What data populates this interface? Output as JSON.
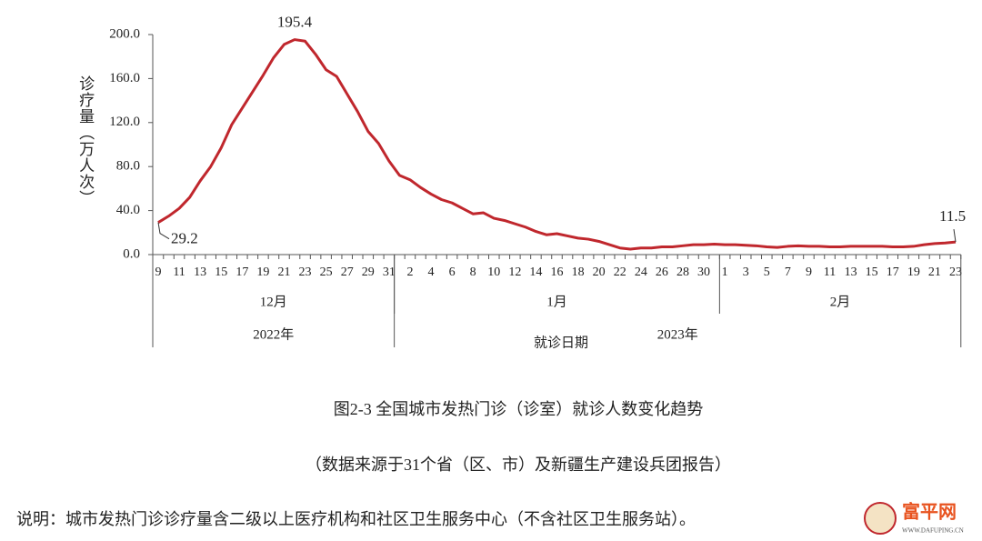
{
  "chart_data": {
    "type": "line",
    "ylabel": "诊疗量（万人次）",
    "xlabel": "就诊日期",
    "title": "图2-3 全国城市发热门诊（诊室）就诊人数变化趋势",
    "subtitle": "（数据来源于31个省（区、市）及新疆生产建设兵团报告）",
    "note": "说明：城市发热门诊诊疗量含二级以上医疗机构和社区卫生服务中心（不含社区卫生服务站）。",
    "watermark": {
      "name": "富平网",
      "url": "WWW.DAFUPING.CN"
    },
    "years": [
      {
        "label": "2022年",
        "months": [
          {
            "label": "12月",
            "days": [
              9,
              null,
              11,
              null,
              13,
              null,
              15,
              null,
              17,
              null,
              19,
              null,
              21,
              null,
              23,
              null,
              25,
              null,
              27,
              null,
              29,
              null,
              31
            ]
          }
        ]
      },
      {
        "label": "2023年",
        "months": [
          {
            "label": "1月",
            "days": [
              null,
              2,
              null,
              4,
              null,
              6,
              null,
              8,
              null,
              10,
              null,
              12,
              null,
              14,
              null,
              16,
              null,
              18,
              null,
              20,
              null,
              22,
              null,
              24,
              null,
              26,
              null,
              28,
              null,
              30,
              null
            ]
          },
          {
            "label": "2月",
            "days": [
              1,
              null,
              3,
              null,
              5,
              null,
              7,
              null,
              9,
              null,
              11,
              null,
              13,
              null,
              15,
              null,
              17,
              null,
              19,
              null,
              21,
              null,
              23
            ]
          }
        ]
      }
    ],
    "series": [
      {
        "color": "#c0272d",
        "values": [
          29.2,
          35,
          42,
          52,
          67,
          80,
          97,
          118,
          133,
          148,
          163,
          179,
          191,
          195.4,
          194,
          182,
          168,
          162,
          146,
          130,
          112,
          101,
          85,
          72,
          68,
          61,
          55,
          50,
          47,
          42,
          37,
          38,
          33,
          31,
          28,
          25,
          21,
          18,
          19,
          17,
          15,
          14,
          12,
          9,
          6,
          5,
          6,
          6,
          7,
          7,
          8,
          9,
          9,
          9.5,
          9,
          9,
          8.5,
          8,
          7,
          6.5,
          7.5,
          8,
          7.5,
          7.5,
          7,
          7,
          7.5,
          7.5,
          7.5,
          7.5,
          7,
          7,
          7.5,
          9,
          10,
          10.5,
          11.5
        ],
        "value_labels": [
          "29.2",
          null,
          null,
          null,
          null,
          null,
          null,
          null,
          null,
          null,
          null,
          null,
          null,
          "195.4",
          null,
          null,
          null,
          null,
          null,
          null,
          null,
          null,
          null,
          null,
          null,
          null,
          null,
          null,
          null,
          null,
          null,
          null,
          null,
          null,
          null,
          null,
          null,
          null,
          null,
          null,
          null,
          null,
          null,
          null,
          null,
          null,
          null,
          null,
          null,
          null,
          null,
          null,
          null,
          null,
          null,
          null,
          null,
          null,
          null,
          null,
          null,
          null,
          null,
          null,
          null,
          null,
          null,
          null,
          null,
          null,
          null,
          null,
          null,
          null,
          null,
          null,
          "11.5"
        ]
      }
    ],
    "ylim": [
      0,
      200
    ],
    "yticks": [
      {
        "value": 0,
        "label": "0.0"
      },
      {
        "value": 40,
        "label": "40.0"
      },
      {
        "value": 80,
        "label": "80.0"
      },
      {
        "value": 120,
        "label": "120.0"
      },
      {
        "value": 160,
        "label": "160.0"
      },
      {
        "value": 200,
        "label": "200.0"
      }
    ],
    "grid": false
  }
}
